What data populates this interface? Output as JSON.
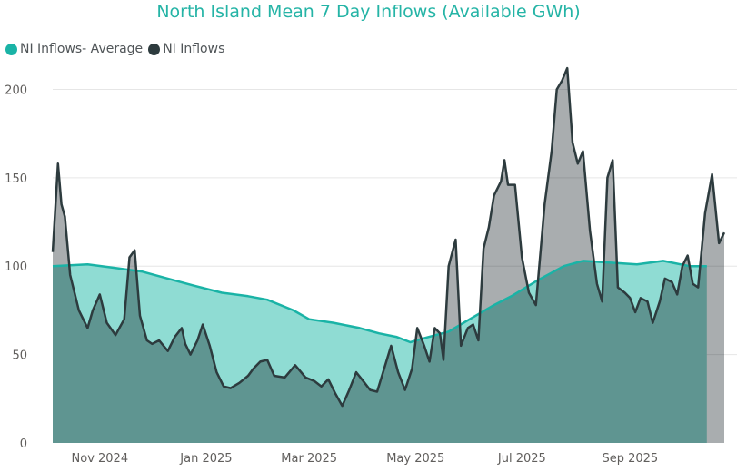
{
  "chart_data": {
    "type": "area",
    "title": "North Island Mean 7 Day Inflows (Available GWh)",
    "xlabel": "",
    "ylabel": "",
    "ylim": [
      0,
      210
    ],
    "y_ticks": [
      0,
      50,
      100,
      150,
      200
    ],
    "x_ticks": [
      {
        "label": "Nov 2024",
        "date": "2024-11-01"
      },
      {
        "label": "Jan 2025",
        "date": "2025-01-01"
      },
      {
        "label": "Mar 2025",
        "date": "2025-03-01"
      },
      {
        "label": "May 2025",
        "date": "2025-05-01"
      },
      {
        "label": "Jul 2025",
        "date": "2025-07-01"
      },
      {
        "label": "Sep 2025",
        "date": "2025-09-01"
      }
    ],
    "legend_position": "top-left",
    "grid": true,
    "series": [
      {
        "name": "NI Inflows- Average",
        "color": "#1ab3a6",
        "fill": "#8fdcd3",
        "points": [
          [
            "2024-10-05",
            100
          ],
          [
            "2024-10-25",
            101
          ],
          [
            "2024-11-10",
            99
          ],
          [
            "2024-11-25",
            97
          ],
          [
            "2024-12-10",
            93
          ],
          [
            "2024-12-25",
            89
          ],
          [
            "2025-01-10",
            85
          ],
          [
            "2025-01-25",
            83
          ],
          [
            "2025-02-05",
            81
          ],
          [
            "2025-02-20",
            75
          ],
          [
            "2025-03-01",
            70
          ],
          [
            "2025-03-15",
            68
          ],
          [
            "2025-03-30",
            65
          ],
          [
            "2025-04-10",
            62
          ],
          [
            "2025-04-20",
            60
          ],
          [
            "2025-04-28",
            57
          ],
          [
            "2025-05-05",
            59
          ],
          [
            "2025-05-20",
            63
          ],
          [
            "2025-06-01",
            70
          ],
          [
            "2025-06-15",
            78
          ],
          [
            "2025-06-25",
            83
          ],
          [
            "2025-07-10",
            92
          ],
          [
            "2025-07-25",
            100
          ],
          [
            "2025-08-05",
            103
          ],
          [
            "2025-08-20",
            102
          ],
          [
            "2025-09-05",
            101
          ],
          [
            "2025-09-20",
            103
          ],
          [
            "2025-10-05",
            100
          ],
          [
            "2025-10-15",
            100
          ]
        ]
      },
      {
        "name": "NI Inflows",
        "color": "#2d3b3e",
        "fill": "#a9adaf",
        "points": [
          [
            "2024-10-05",
            108
          ],
          [
            "2024-10-08",
            158
          ],
          [
            "2024-10-10",
            135
          ],
          [
            "2024-10-12",
            128
          ],
          [
            "2024-10-15",
            95
          ],
          [
            "2024-10-20",
            75
          ],
          [
            "2024-10-25",
            65
          ],
          [
            "2024-10-28",
            75
          ],
          [
            "2024-11-01",
            84
          ],
          [
            "2024-11-05",
            68
          ],
          [
            "2024-11-10",
            61
          ],
          [
            "2024-11-15",
            70
          ],
          [
            "2024-11-18",
            105
          ],
          [
            "2024-11-21",
            109
          ],
          [
            "2024-11-24",
            72
          ],
          [
            "2024-11-28",
            58
          ],
          [
            "2024-12-01",
            56
          ],
          [
            "2024-12-05",
            58
          ],
          [
            "2024-12-10",
            52
          ],
          [
            "2024-12-14",
            60
          ],
          [
            "2024-12-18",
            65
          ],
          [
            "2024-12-20",
            56
          ],
          [
            "2024-12-23",
            50
          ],
          [
            "2024-12-27",
            58
          ],
          [
            "2024-12-30",
            67
          ],
          [
            "2025-01-03",
            55
          ],
          [
            "2025-01-07",
            40
          ],
          [
            "2025-01-11",
            32
          ],
          [
            "2025-01-15",
            31
          ],
          [
            "2025-01-20",
            34
          ],
          [
            "2025-01-25",
            38
          ],
          [
            "2025-01-28",
            42
          ],
          [
            "2025-02-01",
            46
          ],
          [
            "2025-02-05",
            47
          ],
          [
            "2025-02-09",
            38
          ],
          [
            "2025-02-15",
            37
          ],
          [
            "2025-02-21",
            44
          ],
          [
            "2025-02-27",
            37
          ],
          [
            "2025-03-04",
            35
          ],
          [
            "2025-03-08",
            32
          ],
          [
            "2025-03-12",
            36
          ],
          [
            "2025-03-16",
            28
          ],
          [
            "2025-03-20",
            21
          ],
          [
            "2025-03-24",
            30
          ],
          [
            "2025-03-28",
            40
          ],
          [
            "2025-04-01",
            35
          ],
          [
            "2025-04-05",
            30
          ],
          [
            "2025-04-09",
            29
          ],
          [
            "2025-04-13",
            42
          ],
          [
            "2025-04-17",
            55
          ],
          [
            "2025-04-21",
            40
          ],
          [
            "2025-04-25",
            30
          ],
          [
            "2025-04-29",
            42
          ],
          [
            "2025-05-02",
            65
          ],
          [
            "2025-05-06",
            55
          ],
          [
            "2025-05-09",
            46
          ],
          [
            "2025-05-12",
            65
          ],
          [
            "2025-05-15",
            62
          ],
          [
            "2025-05-17",
            47
          ],
          [
            "2025-05-20",
            100
          ],
          [
            "2025-05-24",
            115
          ],
          [
            "2025-05-27",
            55
          ],
          [
            "2025-05-31",
            65
          ],
          [
            "2025-06-03",
            67
          ],
          [
            "2025-06-06",
            58
          ],
          [
            "2025-06-09",
            110
          ],
          [
            "2025-06-12",
            122
          ],
          [
            "2025-06-15",
            140
          ],
          [
            "2025-06-19",
            148
          ],
          [
            "2025-06-21",
            160
          ],
          [
            "2025-06-23",
            146
          ],
          [
            "2025-06-27",
            146
          ],
          [
            "2025-07-01",
            105
          ],
          [
            "2025-07-05",
            85
          ],
          [
            "2025-07-09",
            78
          ],
          [
            "2025-07-14",
            135
          ],
          [
            "2025-07-18",
            165
          ],
          [
            "2025-07-21",
            200
          ],
          [
            "2025-07-24",
            205
          ],
          [
            "2025-07-27",
            212
          ],
          [
            "2025-07-30",
            170
          ],
          [
            "2025-08-02",
            158
          ],
          [
            "2025-08-05",
            165
          ],
          [
            "2025-08-09",
            120
          ],
          [
            "2025-08-13",
            90
          ],
          [
            "2025-08-16",
            80
          ],
          [
            "2025-08-19",
            150
          ],
          [
            "2025-08-22",
            160
          ],
          [
            "2025-08-25",
            88
          ],
          [
            "2025-08-29",
            85
          ],
          [
            "2025-09-01",
            82
          ],
          [
            "2025-09-04",
            74
          ],
          [
            "2025-09-07",
            82
          ],
          [
            "2025-09-11",
            80
          ],
          [
            "2025-09-14",
            68
          ],
          [
            "2025-09-18",
            80
          ],
          [
            "2025-09-21",
            93
          ],
          [
            "2025-09-25",
            91
          ],
          [
            "2025-09-28",
            84
          ],
          [
            "2025-10-01",
            100
          ],
          [
            "2025-10-04",
            106
          ],
          [
            "2025-10-07",
            90
          ],
          [
            "2025-10-10",
            88
          ],
          [
            "2025-10-14",
            130
          ],
          [
            "2025-10-18",
            152
          ],
          [
            "2025-10-22",
            113
          ],
          [
            "2025-10-25",
            119
          ]
        ]
      }
    ]
  }
}
